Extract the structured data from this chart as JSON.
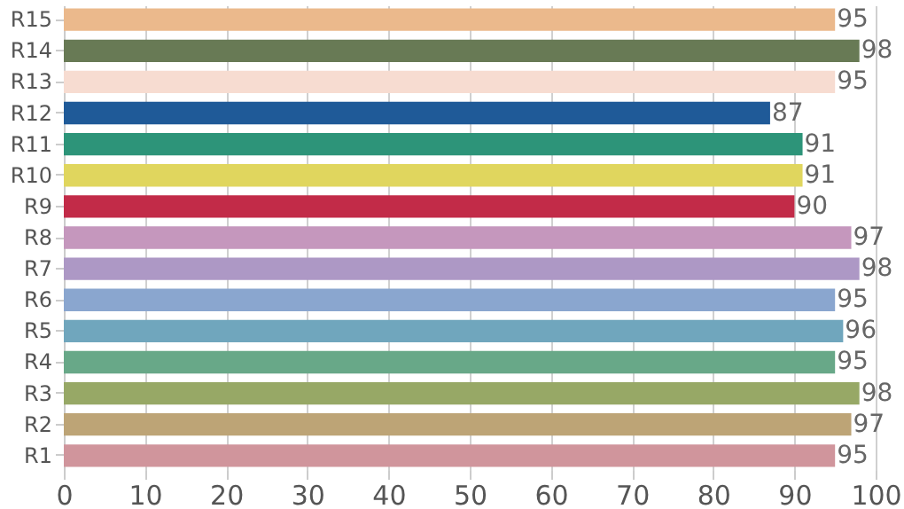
{
  "chart_data": {
    "type": "bar",
    "orientation": "horizontal",
    "categories": [
      "R15",
      "R14",
      "R13",
      "R12",
      "R11",
      "R10",
      "R9",
      "R8",
      "R7",
      "R6",
      "R5",
      "R4",
      "R3",
      "R2",
      "R1"
    ],
    "values": [
      95,
      98,
      95,
      87,
      91,
      91,
      90,
      97,
      98,
      95,
      96,
      95,
      98,
      97,
      95
    ],
    "colors": [
      "#ebb98c",
      "#687a55",
      "#f7dcd1",
      "#1f5a98",
      "#2d9479",
      "#e0d65e",
      "#c22b48",
      "#c597bd",
      "#ad98c5",
      "#8aa6cf",
      "#70a6bd",
      "#68a888",
      "#97a866",
      "#bda476",
      "#d0959c"
    ],
    "xlim": [
      0,
      100
    ],
    "xticks": [
      0,
      10,
      20,
      30,
      40,
      50,
      60,
      70,
      80,
      90,
      100
    ],
    "grid": "x",
    "data_labels": true
  }
}
